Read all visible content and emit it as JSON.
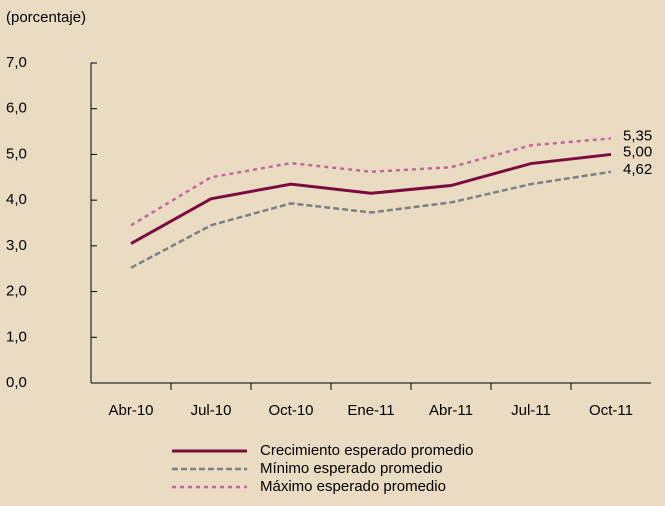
{
  "chart_data": {
    "type": "line",
    "y_axis_label": "(porcentaje)",
    "categories": [
      "Abr-10",
      "Jul-10",
      "Oct-10",
      "Ene-11",
      "Abr-11",
      "Jul-11",
      "Oct-11"
    ],
    "series": [
      {
        "name": "Crecimiento esperado promedio",
        "color": "#7b0c3e",
        "dash": "solid",
        "values": [
          3.05,
          4.03,
          4.35,
          4.15,
          4.32,
          4.8,
          5.0
        ],
        "value_labels": [
          null,
          null,
          null,
          null,
          null,
          null,
          "5,00"
        ]
      },
      {
        "name": "Mínimo esperado promedio",
        "color": "#7f7f7f",
        "dash": "dashed",
        "values": [
          2.52,
          3.45,
          3.93,
          3.73,
          3.95,
          4.35,
          4.62
        ],
        "value_labels": [
          null,
          null,
          null,
          null,
          null,
          null,
          "4,62"
        ]
      },
      {
        "name": "Máximo esperado promedio",
        "color": "#c4679a",
        "dash": "dotted",
        "values": [
          3.45,
          4.5,
          4.81,
          4.62,
          4.72,
          5.2,
          5.35
        ],
        "value_labels": [
          null,
          null,
          null,
          null,
          null,
          null,
          "5,35"
        ]
      }
    ],
    "ylim": [
      0,
      7
    ],
    "yticks": [
      {
        "value": 0,
        "label": "0,0"
      },
      {
        "value": 1,
        "label": "1,0"
      },
      {
        "value": 2,
        "label": "2,0"
      },
      {
        "value": 3,
        "label": "3,0"
      },
      {
        "value": 4,
        "label": "4,0"
      },
      {
        "value": 5,
        "label": "5,0"
      },
      {
        "value": 6,
        "label": "6,0"
      },
      {
        "value": 7,
        "label": "7,0"
      }
    ],
    "grid": false
  }
}
